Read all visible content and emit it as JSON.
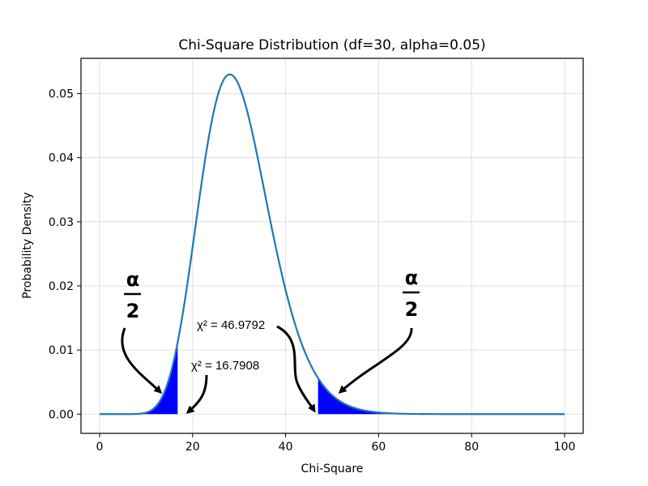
{
  "chart_data": {
    "type": "area",
    "title": "Chi-Square Distribution (df=30, alpha=0.05)",
    "xlabel": "Chi-Square",
    "ylabel": "Probability Density",
    "xlim": [
      -4,
      104
    ],
    "ylim": [
      -0.003,
      0.0555
    ],
    "xticks": [
      0,
      20,
      40,
      60,
      80,
      100
    ],
    "xtick_labels": [
      "0",
      "20",
      "40",
      "60",
      "80",
      "100"
    ],
    "yticks": [
      0.0,
      0.01,
      0.02,
      0.03,
      0.04,
      0.05
    ],
    "ytick_labels": [
      "0.00",
      "0.01",
      "0.02",
      "0.03",
      "0.04",
      "0.05"
    ],
    "grid": true,
    "df": 30,
    "alpha": 0.05,
    "x_range": [
      0,
      100
    ],
    "lower_critical": 16.7908,
    "upper_critical": 46.9792,
    "curve_color": "#1f77b4",
    "fill_color": "#0000ff",
    "annotations": {
      "lower_label": "χ² = 16.7908",
      "upper_label": "χ² = 46.9792",
      "alpha_numerator": "α",
      "alpha_denominator": "2"
    }
  }
}
